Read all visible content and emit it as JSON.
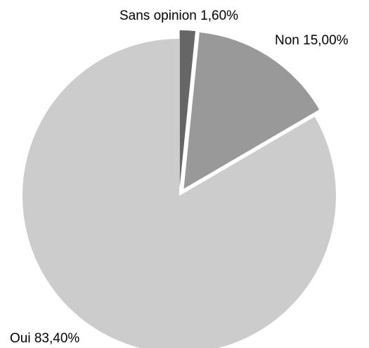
{
  "chart_data": {
    "type": "pie",
    "title": "",
    "legend": "none",
    "slices": [
      {
        "label": "Oui",
        "value_label": "83,40%",
        "value": 83.4,
        "color": "#cccccc",
        "exploded": false
      },
      {
        "label": "Sans opinion",
        "value_label": "1,60%",
        "value": 1.6,
        "color": "#666666",
        "exploded": true
      },
      {
        "label": "Non",
        "value_label": "15,00%",
        "value": 15.0,
        "color": "#999999",
        "exploded": true
      }
    ]
  }
}
